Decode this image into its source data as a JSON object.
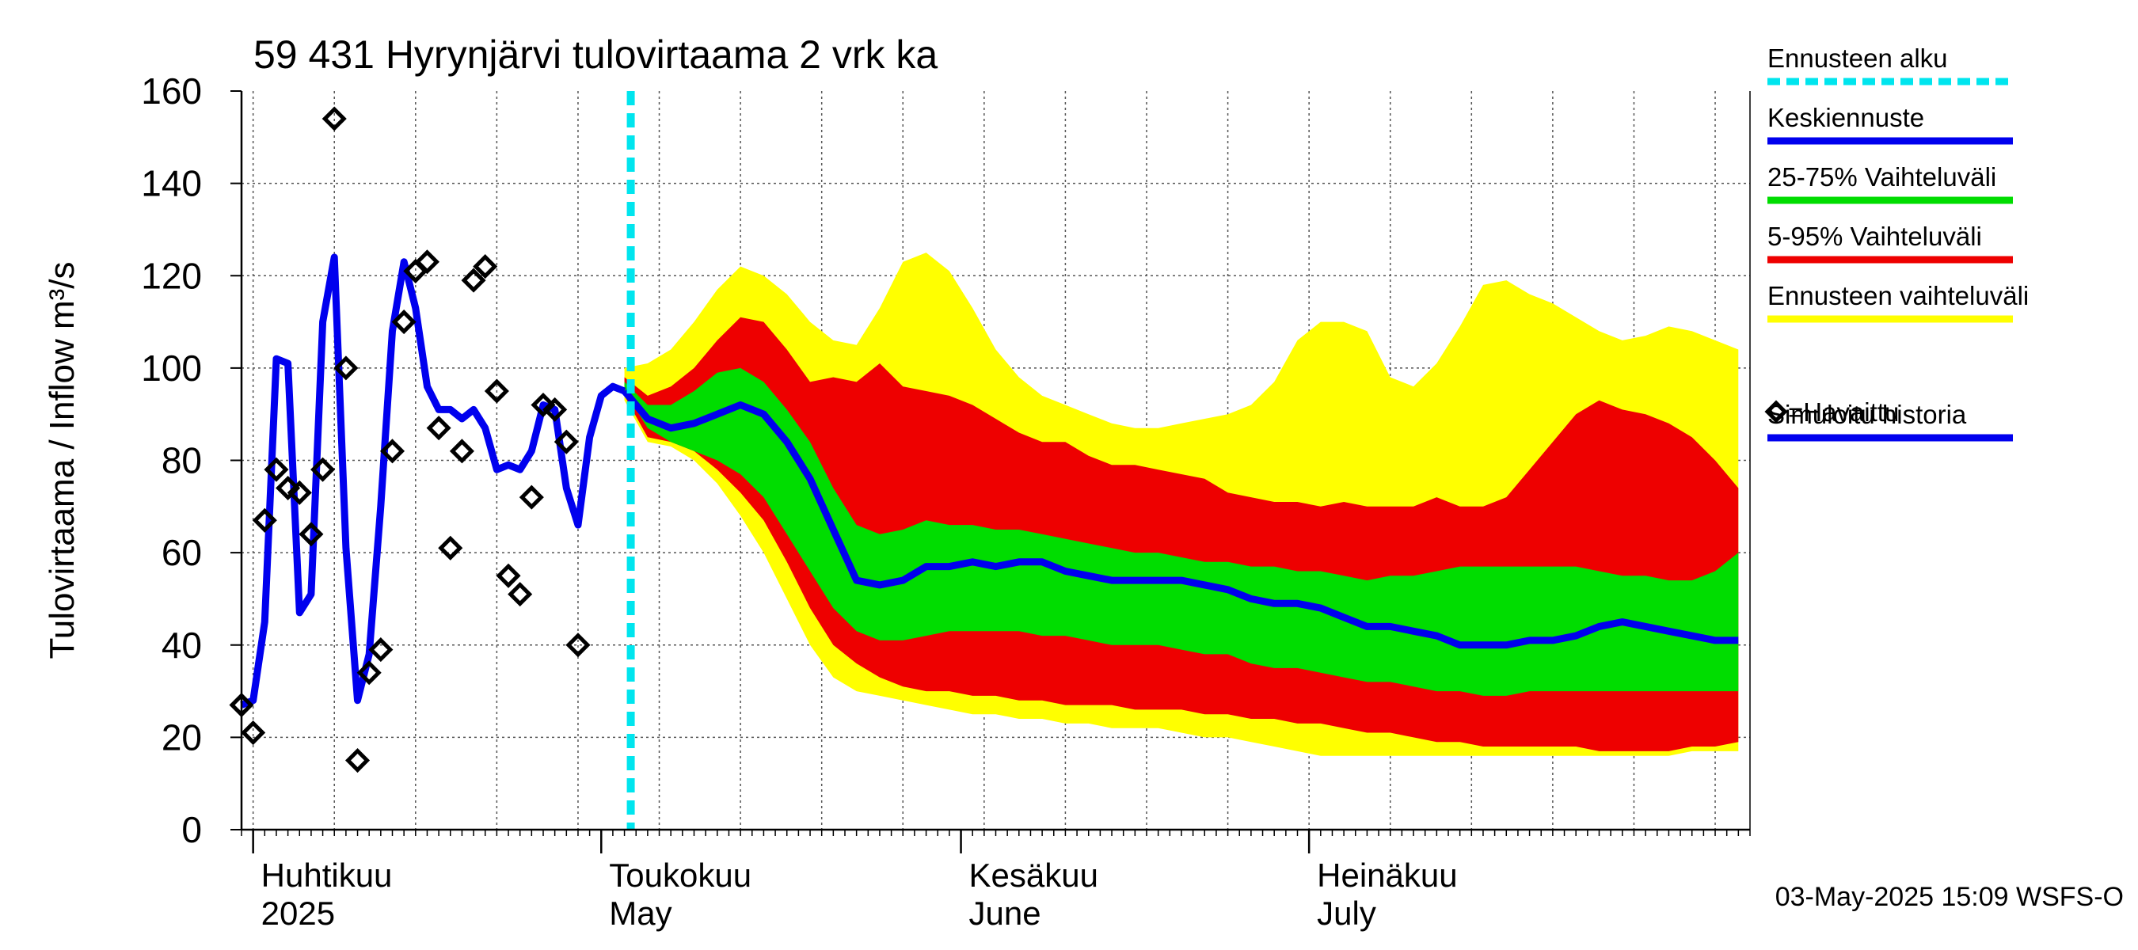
{
  "chart_data": {
    "type": "area",
    "title": "59 431 Hyrynjärvi tulovirtaama 2 vrk ka",
    "ylabel": "Tulovirtaama / Inflow    m³/s",
    "ylim": [
      0,
      160
    ],
    "yticks": [
      0,
      20,
      40,
      60,
      80,
      100,
      120,
      140,
      160
    ],
    "xlim": [
      "2025-03-31",
      "2025-08-08"
    ],
    "month_labels": [
      {
        "date": "2025-04-01",
        "fi": "Huhtikuu",
        "en": "2025"
      },
      {
        "date": "2025-05-01",
        "fi": "Toukokuu",
        "en": "May"
      },
      {
        "date": "2025-06-01",
        "fi": "Kesäkuu",
        "en": "June"
      },
      {
        "date": "2025-07-01",
        "fi": "Heinäkuu",
        "en": "July"
      }
    ],
    "forecast_start": "2025-05-03",
    "timestamp": "03-May-2025 15:09 WSFS-O",
    "grid": true,
    "legend_position": "right",
    "colors": {
      "forecast_start": "#00e5ee",
      "median": "#0000ee",
      "band_25_75": "#00dd00",
      "band_5_95": "#ee0000",
      "band_full": "#ffff00",
      "history": "#0000ee",
      "observed": "#000000"
    },
    "legend": [
      {
        "label": "Ennusteen alku",
        "key": "forecast_start",
        "style": "dashed"
      },
      {
        "label": "Keskiennuste",
        "key": "median",
        "style": "line"
      },
      {
        "label": "25-75% Vaihteluväli",
        "key": "band_25_75",
        "style": "line"
      },
      {
        "label": "5-95% Vaihteluväli",
        "key": "band_5_95",
        "style": "line"
      },
      {
        "label": "Ennusteen vaihteluväli",
        "key": "band_full",
        "style": "line"
      },
      {
        "label": "=Havaittu",
        "key": "observed",
        "style": "diamond"
      },
      {
        "label": "Simuloitu historia",
        "key": "history",
        "style": "line"
      }
    ],
    "history": {
      "x": [
        "2025-03-31",
        "2025-04-01",
        "2025-04-02",
        "2025-04-03",
        "2025-04-04",
        "2025-04-05",
        "2025-04-06",
        "2025-04-07",
        "2025-04-08",
        "2025-04-09",
        "2025-04-10",
        "2025-04-11",
        "2025-04-12",
        "2025-04-13",
        "2025-04-14",
        "2025-04-15",
        "2025-04-16",
        "2025-04-17",
        "2025-04-18",
        "2025-04-19",
        "2025-04-20",
        "2025-04-21",
        "2025-04-22",
        "2025-04-23",
        "2025-04-24",
        "2025-04-25",
        "2025-04-26",
        "2025-04-27",
        "2025-04-28",
        "2025-04-29",
        "2025-04-30",
        "2025-05-01",
        "2025-05-02",
        "2025-05-03"
      ],
      "y": [
        27,
        28,
        45,
        102,
        101,
        47,
        51,
        110,
        124,
        61,
        28,
        38,
        70,
        108,
        123,
        113,
        96,
        91,
        91,
        89,
        91,
        87,
        78,
        79,
        78,
        82,
        92,
        91,
        74,
        66,
        85,
        94,
        96,
        95
      ]
    },
    "observed": {
      "x": [
        "2025-03-31",
        "2025-04-01",
        "2025-04-02",
        "2025-04-03",
        "2025-04-04",
        "2025-04-05",
        "2025-04-06",
        "2025-04-07",
        "2025-04-08",
        "2025-04-09",
        "2025-04-10",
        "2025-04-11",
        "2025-04-12",
        "2025-04-13",
        "2025-04-14",
        "2025-04-15",
        "2025-04-16",
        "2025-04-17",
        "2025-04-18",
        "2025-04-19",
        "2025-04-20",
        "2025-04-21",
        "2025-04-22",
        "2025-04-23",
        "2025-04-24",
        "2025-04-25",
        "2025-04-26",
        "2025-04-27",
        "2025-04-28",
        "2025-04-29"
      ],
      "y": [
        27,
        21,
        67,
        78,
        74,
        73,
        64,
        78,
        154,
        100,
        15,
        34,
        39,
        82,
        110,
        121,
        123,
        87,
        61,
        82,
        119,
        122,
        95,
        55,
        51,
        72,
        92,
        91,
        84,
        40
      ]
    },
    "forecast": {
      "x": [
        "2025-05-03",
        "2025-05-05",
        "2025-05-07",
        "2025-05-09",
        "2025-05-11",
        "2025-05-13",
        "2025-05-15",
        "2025-05-17",
        "2025-05-19",
        "2025-05-21",
        "2025-05-23",
        "2025-05-25",
        "2025-05-27",
        "2025-05-29",
        "2025-05-31",
        "2025-06-02",
        "2025-06-04",
        "2025-06-06",
        "2025-06-08",
        "2025-06-10",
        "2025-06-12",
        "2025-06-14",
        "2025-06-16",
        "2025-06-18",
        "2025-06-20",
        "2025-06-22",
        "2025-06-24",
        "2025-06-26",
        "2025-06-28",
        "2025-06-30",
        "2025-07-02",
        "2025-07-04",
        "2025-07-06",
        "2025-07-08",
        "2025-07-10",
        "2025-07-12",
        "2025-07-14",
        "2025-07-16",
        "2025-07-18",
        "2025-07-20",
        "2025-07-22",
        "2025-07-24",
        "2025-07-26",
        "2025-07-28",
        "2025-07-30",
        "2025-08-01",
        "2025-08-03",
        "2025-08-05",
        "2025-08-07"
      ],
      "median": [
        95,
        89,
        87,
        88,
        90,
        92,
        90,
        84,
        76,
        65,
        54,
        53,
        54,
        57,
        57,
        58,
        57,
        58,
        58,
        56,
        55,
        54,
        54,
        54,
        54,
        53,
        52,
        50,
        49,
        49,
        48,
        46,
        44,
        44,
        43,
        42,
        40,
        40,
        40,
        41,
        41,
        42,
        44,
        45,
        44,
        43,
        42,
        41,
        41
      ],
      "p25": [
        95,
        87,
        84,
        82,
        80,
        77,
        72,
        64,
        56,
        48,
        43,
        41,
        41,
        42,
        43,
        43,
        43,
        43,
        42,
        42,
        41,
        40,
        40,
        40,
        39,
        38,
        38,
        36,
        35,
        35,
        34,
        33,
        32,
        32,
        31,
        30,
        30,
        29,
        29,
        30,
        30,
        30,
        30,
        30,
        30,
        30,
        30,
        30,
        30
      ],
      "p75": [
        97,
        92,
        92,
        95,
        99,
        100,
        97,
        91,
        84,
        74,
        66,
        64,
        65,
        67,
        66,
        66,
        65,
        65,
        64,
        63,
        62,
        61,
        60,
        60,
        59,
        58,
        58,
        57,
        57,
        56,
        56,
        55,
        54,
        55,
        55,
        56,
        57,
        57,
        57,
        57,
        57,
        57,
        56,
        55,
        55,
        54,
        54,
        56,
        60
      ],
      "p5": [
        94,
        85,
        84,
        82,
        78,
        73,
        67,
        58,
        48,
        40,
        36,
        33,
        31,
        30,
        30,
        29,
        29,
        28,
        28,
        27,
        27,
        27,
        26,
        26,
        26,
        25,
        25,
        24,
        24,
        23,
        23,
        22,
        21,
        21,
        20,
        19,
        19,
        18,
        18,
        18,
        18,
        18,
        17,
        17,
        17,
        17,
        18,
        18,
        19
      ],
      "p95": [
        98,
        94,
        96,
        100,
        106,
        111,
        110,
        104,
        97,
        98,
        97,
        101,
        96,
        95,
        94,
        92,
        89,
        86,
        84,
        84,
        81,
        79,
        79,
        78,
        77,
        76,
        73,
        72,
        71,
        71,
        70,
        71,
        70,
        70,
        70,
        72,
        70,
        70,
        72,
        78,
        84,
        90,
        93,
        91,
        90,
        88,
        85,
        80,
        74
      ],
      "min": [
        93,
        84,
        83,
        80,
        75,
        68,
        60,
        50,
        40,
        33,
        30,
        29,
        28,
        27,
        26,
        25,
        25,
        24,
        24,
        23,
        23,
        22,
        22,
        22,
        21,
        20,
        20,
        19,
        18,
        17,
        16,
        16,
        16,
        16,
        16,
        16,
        16,
        16,
        16,
        16,
        16,
        16,
        16,
        16,
        16,
        16,
        17,
        17,
        17
      ],
      "max": [
        100,
        101,
        104,
        110,
        117,
        122,
        120,
        116,
        110,
        106,
        105,
        113,
        123,
        125,
        121,
        113,
        104,
        98,
        94,
        92,
        90,
        88,
        87,
        87,
        88,
        89,
        90,
        92,
        97,
        106,
        110,
        110,
        108,
        98,
        96,
        101,
        109,
        118,
        119,
        116,
        114,
        111,
        108,
        106,
        107,
        109,
        108,
        106,
        104
      ]
    }
  }
}
